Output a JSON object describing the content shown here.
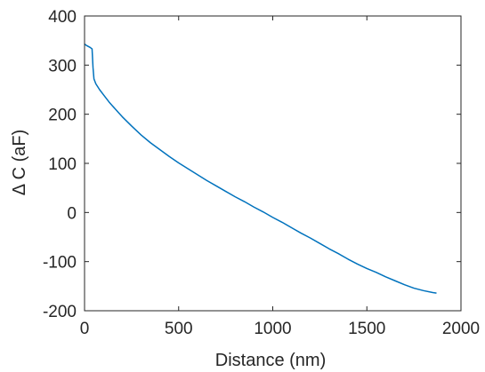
{
  "chart_data": {
    "type": "line",
    "title": "",
    "xlabel": "Distance (nm)",
    "ylabel": "Δ C (aF)",
    "xlim": [
      0,
      2000
    ],
    "ylim": [
      -200,
      400
    ],
    "xticks": [
      0,
      500,
      1000,
      1500,
      2000
    ],
    "yticks": [
      -200,
      -100,
      0,
      100,
      200,
      300,
      400
    ],
    "xtick_labels": [
      "0",
      "500",
      "1000",
      "1500",
      "2000"
    ],
    "ytick_labels": [
      "-200",
      "-100",
      "0",
      "100",
      "200",
      "300",
      "400"
    ],
    "grid": false,
    "box": true,
    "series": [
      {
        "color": "#0072BD",
        "x": [
          0,
          10,
          20,
          30,
          40,
          45,
          50,
          60,
          80,
          100,
          130,
          160,
          200,
          250,
          300,
          350,
          400,
          450,
          500,
          550,
          600,
          650,
          700,
          750,
          800,
          850,
          900,
          950,
          1000,
          1050,
          1100,
          1150,
          1200,
          1250,
          1300,
          1350,
          1400,
          1450,
          1500,
          1550,
          1600,
          1650,
          1700,
          1750,
          1800,
          1850,
          1870
        ],
        "y": [
          343,
          340,
          338,
          336,
          333,
          295,
          272,
          262,
          250,
          240,
          225,
          212,
          195,
          176,
          158,
          142,
          128,
          114,
          101,
          89,
          77,
          65,
          54,
          43,
          32,
          22,
          11,
          1,
          -10,
          -20,
          -31,
          -42,
          -52,
          -63,
          -74,
          -84,
          -95,
          -105,
          -114,
          -122,
          -131,
          -139,
          -147,
          -154,
          -159,
          -163,
          -164
        ]
      }
    ]
  }
}
